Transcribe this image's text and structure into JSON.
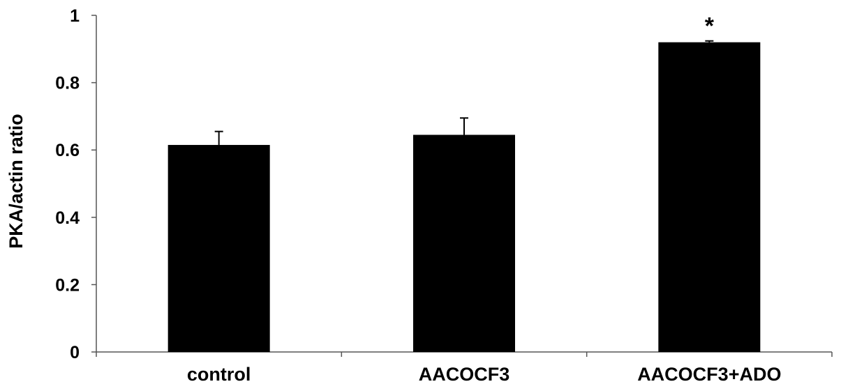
{
  "chart_data": {
    "type": "bar",
    "title": "",
    "xlabel": "",
    "ylabel": "PKA/actin ratio",
    "ylim": [
      0,
      1
    ],
    "yticks": [
      0,
      0.2,
      0.4,
      0.6,
      0.8,
      1
    ],
    "ytick_labels": [
      "0",
      "0.2",
      "0.4",
      "0.6",
      "0.8",
      "1"
    ],
    "categories": [
      "control",
      "AACOCF3",
      "AACOCF3+ADO"
    ],
    "values": [
      0.615,
      0.645,
      0.92
    ],
    "error": [
      0.04,
      0.05,
      0.004
    ],
    "annotations": [
      "",
      "",
      "*"
    ],
    "grid": false,
    "bar_color": "#000000"
  }
}
